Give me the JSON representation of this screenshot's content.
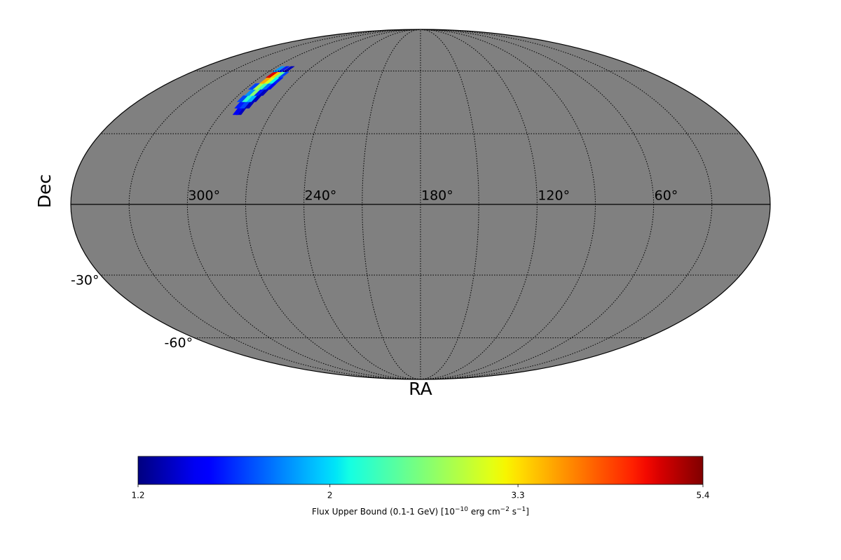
{
  "chart_data": {
    "type": "mollweide",
    "xlabel": "RA",
    "ylabel": "Dec",
    "xticks": [
      {
        "value": 300,
        "label": "300°"
      },
      {
        "value": 240,
        "label": "240°"
      },
      {
        "value": 180,
        "label": "180°"
      },
      {
        "value": 120,
        "label": "120°"
      },
      {
        "value": 60,
        "label": "60°"
      }
    ],
    "yticks": [
      {
        "value": -30,
        "label": "-30°"
      },
      {
        "value": -60,
        "label": "-60°"
      }
    ],
    "grid": true,
    "grid_spacing": 30,
    "background": "#808080",
    "cell_size": 3,
    "cells": {
      "ra": [
        289,
        291,
        287,
        290,
        293,
        286,
        289,
        292,
        295,
        285,
        288,
        291,
        294,
        284,
        287,
        290,
        293,
        296,
        284,
        287,
        290,
        293,
        285,
        288,
        291,
        294,
        287,
        291,
        295
      ],
      "dec": [
        40,
        40,
        43,
        43,
        43,
        46,
        46,
        46,
        46,
        49,
        49,
        49,
        49,
        52,
        52,
        52,
        52,
        52,
        55,
        55,
        55,
        55,
        58,
        58,
        58,
        58,
        61,
        61,
        61
      ],
      "values": [
        1.3,
        1.4,
        1.3,
        1.6,
        1.5,
        1.3,
        1.9,
        2.2,
        1.6,
        1.3,
        1.5,
        2.6,
        1.8,
        1.4,
        1.7,
        2.3,
        2.8,
        1.6,
        1.5,
        2.1,
        3.0,
        3.6,
        1.6,
        2.4,
        3.4,
        4.8,
        1.3,
        1.5,
        1.8
      ]
    },
    "colormap": "jet",
    "colorbar": {
      "lim": [
        1.2,
        5.4
      ],
      "log": true,
      "ticks": [
        1.2,
        2,
        3.3,
        5.4
      ],
      "label": [
        "Flux Upper Bound (0.1-1 GeV) [10",
        "−10",
        " erg cm",
        "−2",
        " s",
        "−1",
        "]"
      ]
    }
  }
}
